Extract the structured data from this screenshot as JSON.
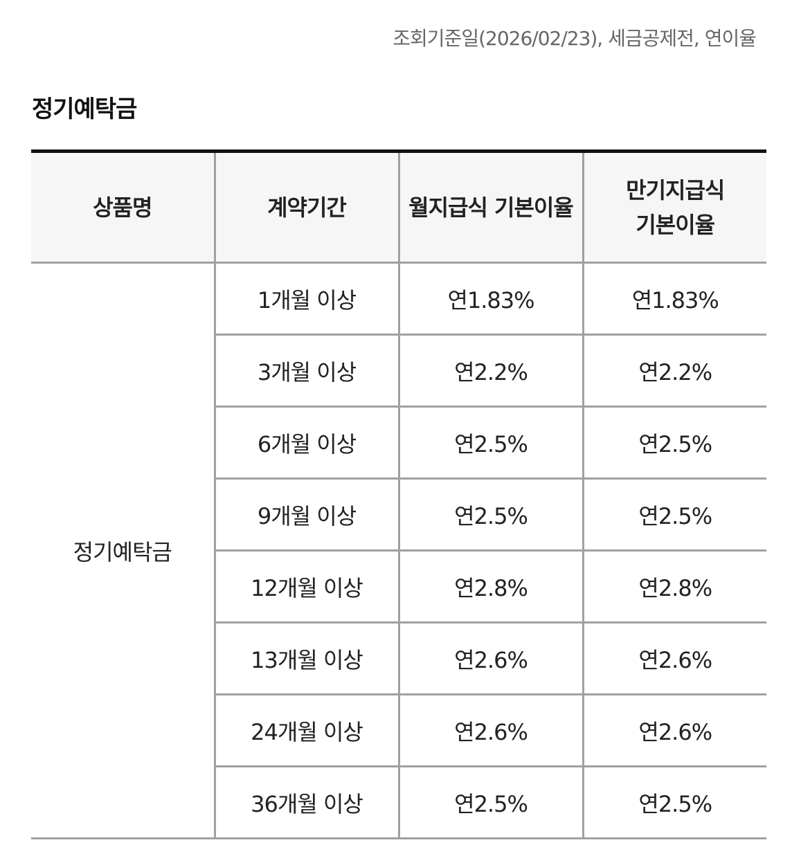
{
  "notice": "조회기준일(2026/02/23), 세금공제전, 연이율",
  "section_title": "정기예탁금",
  "table": {
    "headers": [
      "상품명",
      "계약기간",
      "월지급식 기본이율",
      "만기지급식 기본이율"
    ],
    "product_name": "정기예탁금",
    "rows": [
      {
        "period": "1개월 이상",
        "monthly_rate": "연1.83%",
        "maturity_rate": "연1.83%"
      },
      {
        "period": "3개월 이상",
        "monthly_rate": "연2.2%",
        "maturity_rate": "연2.2%"
      },
      {
        "period": "6개월 이상",
        "monthly_rate": "연2.5%",
        "maturity_rate": "연2.5%"
      },
      {
        "period": "9개월 이상",
        "monthly_rate": "연2.5%",
        "maturity_rate": "연2.5%"
      },
      {
        "period": "12개월 이상",
        "monthly_rate": "연2.8%",
        "maturity_rate": "연2.8%"
      },
      {
        "period": "13개월 이상",
        "monthly_rate": "연2.6%",
        "maturity_rate": "연2.6%"
      },
      {
        "period": "24개월 이상",
        "monthly_rate": "연2.6%",
        "maturity_rate": "연2.6%"
      },
      {
        "period": "36개월 이상",
        "monthly_rate": "연2.5%",
        "maturity_rate": "연2.5%"
      }
    ]
  }
}
